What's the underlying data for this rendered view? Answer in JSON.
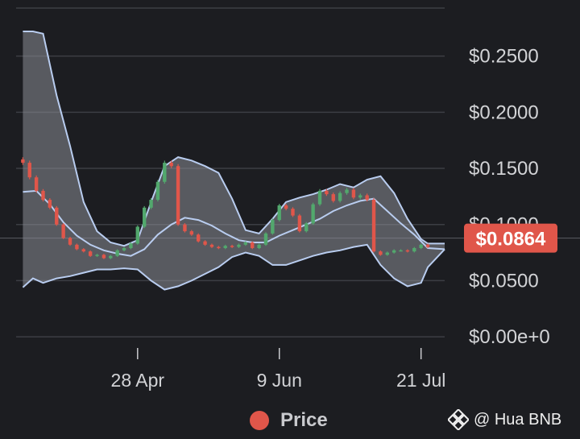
{
  "colors": {
    "background": "#1c1d21",
    "grid": "#3c3e44",
    "band_fill": "#8a8d96",
    "band_line": "#b9cdf0",
    "up": "#52a86d",
    "down": "#e0564a",
    "price_badge": "#e0564a"
  },
  "chart_data": {
    "type": "candlestick",
    "y_ticks": [
      "$0.2500",
      "$0.2000",
      "$0.1500",
      "$0.1000",
      "$0.0500",
      "$0.00e+0"
    ],
    "y_tick_values": [
      0.25,
      0.2,
      0.15,
      0.1,
      0.05,
      0.0
    ],
    "ylim": [
      -0.01,
      0.3
    ],
    "x_ticks": [
      "28 Apr",
      "9 Jun",
      "21 Jul"
    ],
    "x_tick_dates": [
      "2024-04-28",
      "2024-06-09",
      "2024-07-21"
    ],
    "xlim": [
      "2024-03-23",
      "2024-07-28"
    ],
    "current_price": "$0.0864",
    "current_price_value": 0.0864,
    "grid": true,
    "legend": {
      "position": "bottom",
      "label": "Price"
    },
    "price_series": [
      [
        "2024-03-23",
        0.158
      ],
      [
        "2024-03-25",
        0.155
      ],
      [
        "2024-03-27",
        0.142
      ],
      [
        "2024-03-29",
        0.13
      ],
      [
        "2024-03-31",
        0.122
      ],
      [
        "2024-04-02",
        0.115
      ],
      [
        "2024-04-04",
        0.1
      ],
      [
        "2024-04-06",
        0.088
      ],
      [
        "2024-04-08",
        0.082
      ],
      [
        "2024-04-10",
        0.078
      ],
      [
        "2024-04-12",
        0.076
      ],
      [
        "2024-04-14",
        0.072
      ],
      [
        "2024-04-16",
        0.073
      ],
      [
        "2024-04-18",
        0.07
      ],
      [
        "2024-04-20",
        0.072
      ],
      [
        "2024-04-22",
        0.077
      ],
      [
        "2024-04-24",
        0.079
      ],
      [
        "2024-04-26",
        0.083
      ],
      [
        "2024-04-28",
        0.098
      ],
      [
        "2024-04-30",
        0.115
      ],
      [
        "2024-05-02",
        0.122
      ],
      [
        "2024-05-04",
        0.138
      ],
      [
        "2024-05-06",
        0.155
      ],
      [
        "2024-05-08",
        0.152
      ],
      [
        "2024-05-10",
        0.1
      ],
      [
        "2024-05-12",
        0.094
      ],
      [
        "2024-05-14",
        0.091
      ],
      [
        "2024-05-16",
        0.085
      ],
      [
        "2024-05-18",
        0.082
      ],
      [
        "2024-05-20",
        0.08
      ],
      [
        "2024-05-22",
        0.079
      ],
      [
        "2024-05-24",
        0.081
      ],
      [
        "2024-05-26",
        0.08
      ],
      [
        "2024-05-28",
        0.082
      ],
      [
        "2024-05-30",
        0.084
      ],
      [
        "2024-06-01",
        0.079
      ],
      [
        "2024-06-03",
        0.082
      ],
      [
        "2024-06-05",
        0.092
      ],
      [
        "2024-06-07",
        0.104
      ],
      [
        "2024-06-09",
        0.117
      ],
      [
        "2024-06-11",
        0.114
      ],
      [
        "2024-06-13",
        0.108
      ],
      [
        "2024-06-15",
        0.094
      ],
      [
        "2024-06-17",
        0.101
      ],
      [
        "2024-06-19",
        0.118
      ],
      [
        "2024-06-21",
        0.13
      ],
      [
        "2024-06-23",
        0.127
      ],
      [
        "2024-06-25",
        0.121
      ],
      [
        "2024-06-27",
        0.128
      ],
      [
        "2024-06-29",
        0.131
      ],
      [
        "2024-07-01",
        0.124
      ],
      [
        "2024-07-03",
        0.126
      ],
      [
        "2024-07-05",
        0.122
      ],
      [
        "2024-07-07",
        0.076
      ],
      [
        "2024-07-09",
        0.073
      ],
      [
        "2024-07-11",
        0.075
      ],
      [
        "2024-07-13",
        0.077
      ],
      [
        "2024-07-15",
        0.077
      ],
      [
        "2024-07-17",
        0.076
      ],
      [
        "2024-07-19",
        0.079
      ],
      [
        "2024-07-21",
        0.082
      ],
      [
        "2024-07-23",
        0.08
      ]
    ],
    "bollinger_upper": [
      [
        "2024-03-25",
        0.272
      ],
      [
        "2024-03-28",
        0.272
      ],
      [
        "2024-03-31",
        0.27
      ],
      [
        "2024-04-04",
        0.215
      ],
      [
        "2024-04-08",
        0.17
      ],
      [
        "2024-04-12",
        0.12
      ],
      [
        "2024-04-16",
        0.094
      ],
      [
        "2024-04-20",
        0.084
      ],
      [
        "2024-04-24",
        0.081
      ],
      [
        "2024-04-28",
        0.086
      ],
      [
        "2024-05-02",
        0.12
      ],
      [
        "2024-05-06",
        0.152
      ],
      [
        "2024-05-10",
        0.16
      ],
      [
        "2024-05-14",
        0.157
      ],
      [
        "2024-05-18",
        0.152
      ],
      [
        "2024-05-22",
        0.146
      ],
      [
        "2024-05-26",
        0.123
      ],
      [
        "2024-05-30",
        0.095
      ],
      [
        "2024-06-03",
        0.092
      ],
      [
        "2024-06-07",
        0.105
      ],
      [
        "2024-06-11",
        0.12
      ],
      [
        "2024-06-15",
        0.124
      ],
      [
        "2024-06-19",
        0.127
      ],
      [
        "2024-06-23",
        0.131
      ],
      [
        "2024-06-27",
        0.136
      ],
      [
        "2024-07-01",
        0.133
      ],
      [
        "2024-07-05",
        0.14
      ],
      [
        "2024-07-09",
        0.143
      ],
      [
        "2024-07-13",
        0.128
      ],
      [
        "2024-07-17",
        0.105
      ],
      [
        "2024-07-21",
        0.087
      ],
      [
        "2024-07-23",
        0.083
      ],
      [
        "2024-07-28",
        0.083
      ]
    ],
    "bollinger_middle": [
      [
        "2024-03-25",
        0.129
      ],
      [
        "2024-03-29",
        0.13
      ],
      [
        "2024-04-02",
        0.118
      ],
      [
        "2024-04-06",
        0.102
      ],
      [
        "2024-04-10",
        0.09
      ],
      [
        "2024-04-14",
        0.082
      ],
      [
        "2024-04-18",
        0.077
      ],
      [
        "2024-04-22",
        0.074
      ],
      [
        "2024-04-26",
        0.072
      ],
      [
        "2024-04-30",
        0.078
      ],
      [
        "2024-05-04",
        0.091
      ],
      [
        "2024-05-08",
        0.1
      ],
      [
        "2024-05-12",
        0.106
      ],
      [
        "2024-05-16",
        0.104
      ],
      [
        "2024-05-20",
        0.099
      ],
      [
        "2024-05-24",
        0.092
      ],
      [
        "2024-05-28",
        0.086
      ],
      [
        "2024-06-01",
        0.084
      ],
      [
        "2024-06-05",
        0.084
      ],
      [
        "2024-06-09",
        0.09
      ],
      [
        "2024-06-13",
        0.095
      ],
      [
        "2024-06-17",
        0.1
      ],
      [
        "2024-06-21",
        0.105
      ],
      [
        "2024-06-25",
        0.112
      ],
      [
        "2024-06-29",
        0.117
      ],
      [
        "2024-07-03",
        0.121
      ],
      [
        "2024-07-07",
        0.123
      ],
      [
        "2024-07-11",
        0.112
      ],
      [
        "2024-07-15",
        0.101
      ],
      [
        "2024-07-19",
        0.091
      ],
      [
        "2024-07-23",
        0.079
      ],
      [
        "2024-07-28",
        0.078
      ]
    ],
    "bollinger_lower": [
      [
        "2024-03-25",
        0.044
      ],
      [
        "2024-03-28",
        0.052
      ],
      [
        "2024-03-31",
        0.048
      ],
      [
        "2024-04-04",
        0.052
      ],
      [
        "2024-04-08",
        0.054
      ],
      [
        "2024-04-12",
        0.057
      ],
      [
        "2024-04-16",
        0.06
      ],
      [
        "2024-04-20",
        0.06
      ],
      [
        "2024-04-24",
        0.061
      ],
      [
        "2024-04-28",
        0.06
      ],
      [
        "2024-05-02",
        0.05
      ],
      [
        "2024-05-06",
        0.042
      ],
      [
        "2024-05-10",
        0.045
      ],
      [
        "2024-05-14",
        0.05
      ],
      [
        "2024-05-18",
        0.056
      ],
      [
        "2024-05-22",
        0.062
      ],
      [
        "2024-05-26",
        0.071
      ],
      [
        "2024-05-30",
        0.075
      ],
      [
        "2024-06-03",
        0.072
      ],
      [
        "2024-06-07",
        0.064
      ],
      [
        "2024-06-11",
        0.064
      ],
      [
        "2024-06-15",
        0.068
      ],
      [
        "2024-06-19",
        0.072
      ],
      [
        "2024-06-23",
        0.075
      ],
      [
        "2024-06-27",
        0.077
      ],
      [
        "2024-07-01",
        0.08
      ],
      [
        "2024-07-05",
        0.082
      ],
      [
        "2024-07-09",
        0.064
      ],
      [
        "2024-07-13",
        0.052
      ],
      [
        "2024-07-17",
        0.045
      ],
      [
        "2024-07-21",
        0.048
      ],
      [
        "2024-07-23",
        0.062
      ],
      [
        "2024-07-28",
        0.078
      ]
    ]
  },
  "legend": {
    "label": "Price",
    "color": "#e0564a"
  },
  "watermark": {
    "text": "@ Hua BNB",
    "icon": "binance-logo-icon"
  }
}
